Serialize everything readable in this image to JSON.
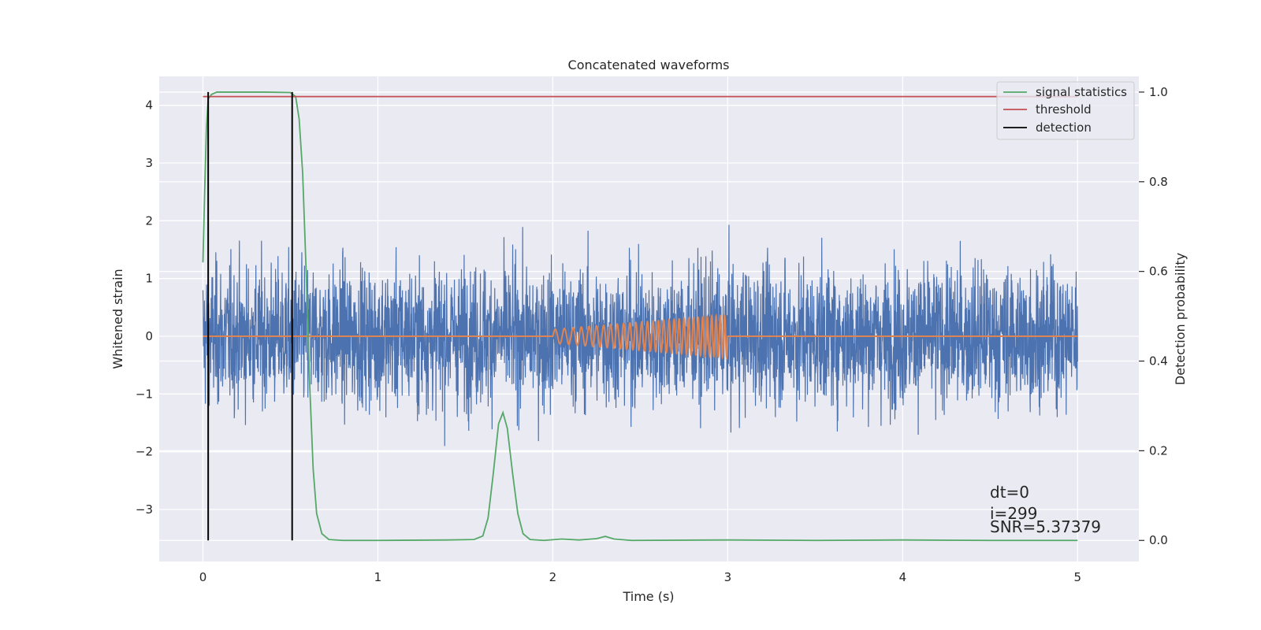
{
  "chart_data": {
    "type": "line",
    "title": "Concatenated waveforms",
    "xlabel": "Time (s)",
    "ylabel": "Whitened strain",
    "y2label": "Detection probability",
    "xlim": [
      -0.25,
      5.35
    ],
    "ylim": [
      -3.9,
      4.5
    ],
    "y2lim": [
      -0.047,
      1.035
    ],
    "xticks": [
      0,
      1,
      2,
      3,
      4,
      5
    ],
    "xtick_labels": [
      "0",
      "1",
      "2",
      "3",
      "4",
      "5"
    ],
    "yticks": [
      -3,
      -2,
      -1,
      0,
      1,
      2,
      3,
      4
    ],
    "ytick_labels": [
      "−3",
      "−2",
      "−1",
      "0",
      "1",
      "2",
      "3",
      "4"
    ],
    "y2ticks": [
      0.0,
      0.2,
      0.4,
      0.6,
      0.8,
      1.0
    ],
    "y2tick_labels": [
      "0.0",
      "0.2",
      "0.4",
      "0.6",
      "0.8",
      "1.0"
    ],
    "grid": true,
    "legend_position": "top-right",
    "background_color": "#eaeaf2",
    "series": [
      {
        "name": "",
        "axis": "left",
        "color": "#4c72b0",
        "kind": "noise",
        "x_range": [
          0,
          5
        ],
        "std": 0.8,
        "max": 4.1,
        "min": -3.6
      },
      {
        "name": "",
        "axis": "left",
        "color": "#dd8452",
        "kind": "chirp",
        "x_range": [
          0,
          5
        ],
        "chirp_start": 2.0,
        "chirp_end": 3.0,
        "start_amplitude": 0.12,
        "end_amplitude": 0.37,
        "cycles": 30
      },
      {
        "name": "signal statistics",
        "axis": "right",
        "color": "#55a868",
        "points": [
          [
            0.0,
            0.62
          ],
          [
            0.01,
            0.78
          ],
          [
            0.02,
            0.92
          ],
          [
            0.03,
            0.985
          ],
          [
            0.05,
            0.995
          ],
          [
            0.08,
            1.0
          ],
          [
            0.2,
            1.0
          ],
          [
            0.35,
            1.0
          ],
          [
            0.5,
            0.999
          ],
          [
            0.53,
            0.99
          ],
          [
            0.55,
            0.94
          ],
          [
            0.57,
            0.82
          ],
          [
            0.59,
            0.6
          ],
          [
            0.61,
            0.35
          ],
          [
            0.63,
            0.16
          ],
          [
            0.65,
            0.06
          ],
          [
            0.68,
            0.015
          ],
          [
            0.72,
            0.002
          ],
          [
            0.8,
            0.0
          ],
          [
            1.0,
            0.0
          ],
          [
            1.4,
            0.001
          ],
          [
            1.55,
            0.002
          ],
          [
            1.6,
            0.01
          ],
          [
            1.63,
            0.05
          ],
          [
            1.66,
            0.15
          ],
          [
            1.69,
            0.26
          ],
          [
            1.715,
            0.285
          ],
          [
            1.74,
            0.25
          ],
          [
            1.77,
            0.15
          ],
          [
            1.8,
            0.06
          ],
          [
            1.83,
            0.015
          ],
          [
            1.87,
            0.002
          ],
          [
            1.95,
            0.0
          ],
          [
            2.05,
            0.003
          ],
          [
            2.15,
            0.001
          ],
          [
            2.25,
            0.004
          ],
          [
            2.3,
            0.009
          ],
          [
            2.35,
            0.003
          ],
          [
            2.45,
            0.0
          ],
          [
            3.0,
            0.001
          ],
          [
            3.5,
            0.0
          ],
          [
            4.0,
            0.001
          ],
          [
            4.5,
            0.0
          ],
          [
            5.0,
            0.0
          ]
        ]
      },
      {
        "name": "threshold",
        "axis": "right",
        "color": "#c44e52",
        "points": [
          [
            0.0,
            0.99
          ],
          [
            5.0,
            0.99
          ]
        ]
      },
      {
        "name": "detection",
        "axis": "right",
        "color": "#000000",
        "vlines": [
          0.03,
          0.51
        ],
        "y_range": [
          0.0,
          1.0
        ]
      }
    ],
    "annotations": {
      "dt": "dt=0",
      "i": "i=299",
      "snr": "SNR=5.37379"
    }
  }
}
